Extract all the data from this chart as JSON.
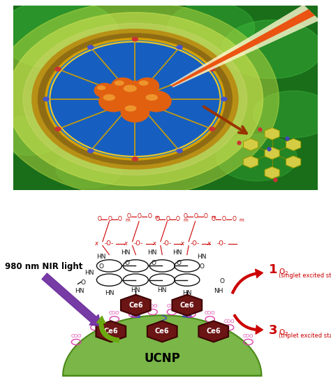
{
  "fig_width": 4.74,
  "fig_height": 5.61,
  "dpi": 100,
  "bg_color": "#ffffff",
  "ucnp_color": "#7ab648",
  "ucnp_label": "UCNP",
  "ce6_color": "#6b1515",
  "ce6_edge_color": "#3d0000",
  "ce6_label": "Ce6",
  "ce6_label_color": "#ffffff",
  "nir_label": "980 nm NIR light",
  "arrow_purple_color": "#7030a0",
  "arrow_green_color": "#6aaa10",
  "arrow_red_color": "#cc0000",
  "peg_color": "#cc0000",
  "carboxyl_color": "#dd44aa",
  "wavy_color": "#4444bb",
  "chem_color": "#111111"
}
